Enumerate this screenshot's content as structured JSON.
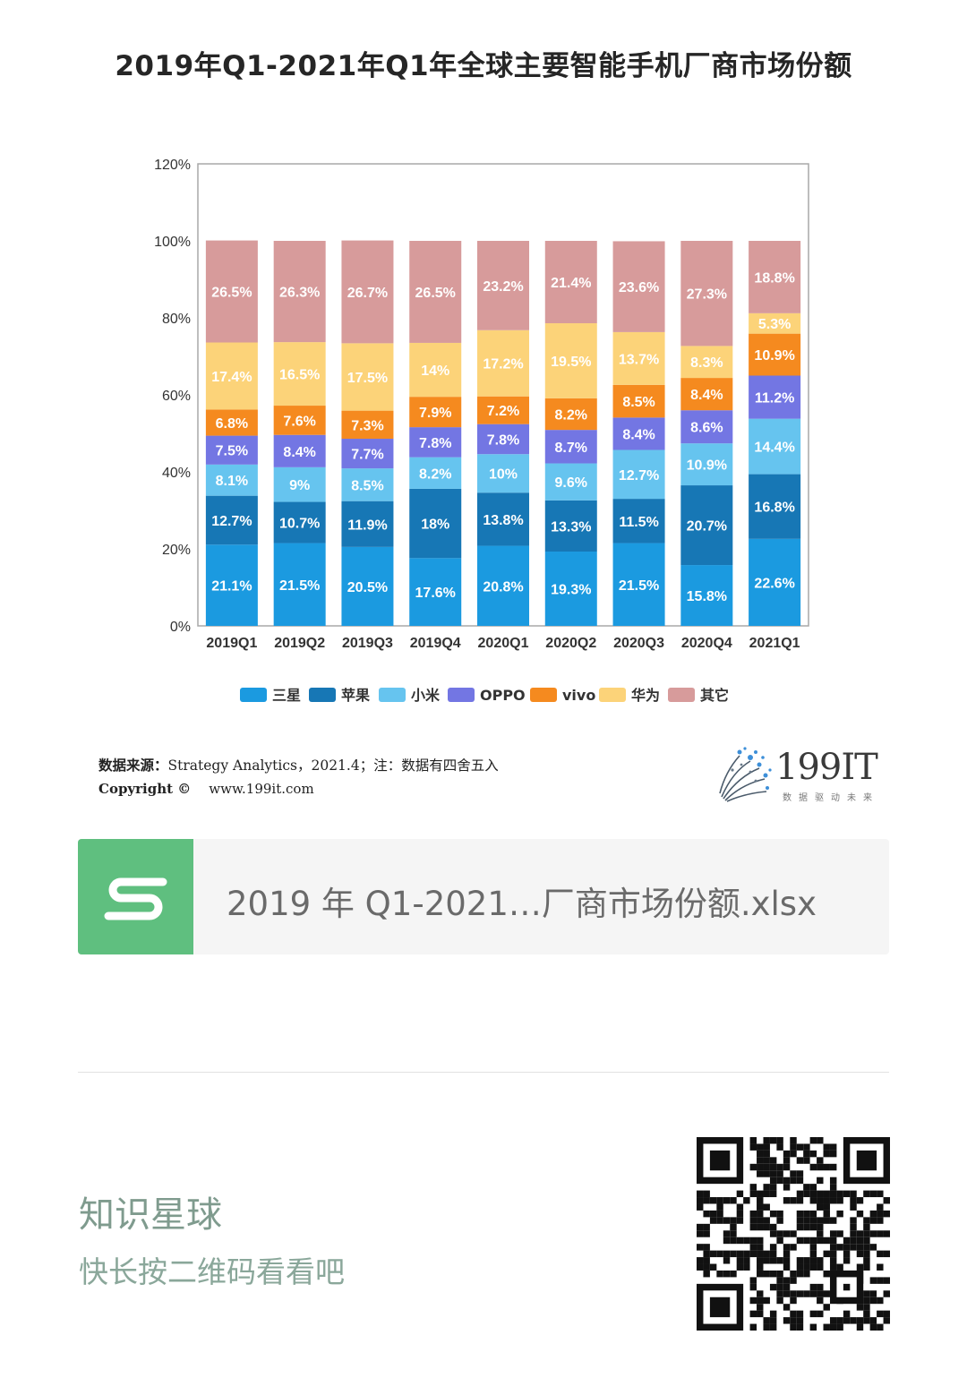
{
  "chart_data": {
    "type": "bar",
    "stacked": true,
    "title": "2019年Q1-2021年Q1年全球主要智能手机厂商市场份额",
    "xlabel": "",
    "ylabel": "",
    "ylim": [
      0,
      120
    ],
    "yticks": [
      "0%",
      "20%",
      "40%",
      "60%",
      "80%",
      "100%",
      "120%"
    ],
    "grid": false,
    "legend_position": "bottom",
    "categories": [
      "2019Q1",
      "2019Q2",
      "2019Q3",
      "2019Q4",
      "2020Q1",
      "2020Q2",
      "2020Q3",
      "2020Q4",
      "2021Q1"
    ],
    "series": [
      {
        "name": "三星",
        "color": "#1b9ae0",
        "values": [
          21.1,
          21.5,
          20.5,
          17.6,
          20.8,
          19.3,
          21.5,
          15.8,
          22.6
        ],
        "labels": [
          "21.1%",
          "21.5%",
          "20.5%",
          "17.6%",
          "20.8%",
          "19.3%",
          "21.5%",
          "15.8%",
          "22.6%"
        ]
      },
      {
        "name": "苹果",
        "color": "#1777b5",
        "values": [
          12.7,
          10.7,
          11.9,
          18,
          13.8,
          13.3,
          11.5,
          20.7,
          16.8
        ],
        "labels": [
          "12.7%",
          "10.7%",
          "11.9%",
          "18%",
          "13.8%",
          "13.3%",
          "11.5%",
          "20.7%",
          "16.8%"
        ]
      },
      {
        "name": "小米",
        "color": "#66c4ef",
        "values": [
          8.1,
          9,
          8.5,
          8.2,
          10,
          9.6,
          12.7,
          10.9,
          14.4
        ],
        "labels": [
          "8.1%",
          "9%",
          "8.5%",
          "8.2%",
          "10%",
          "9.6%",
          "12.7%",
          "10.9%",
          "14.4%"
        ]
      },
      {
        "name": "OPPO",
        "color": "#7376e3",
        "values": [
          7.5,
          8.4,
          7.7,
          7.8,
          7.8,
          8.7,
          8.4,
          8.6,
          11.2
        ],
        "labels": [
          "7.5%",
          "8.4%",
          "7.7%",
          "7.8%",
          "7.8%",
          "8.7%",
          "8.4%",
          "8.6%",
          "11.2%"
        ]
      },
      {
        "name": "vivo",
        "color": "#f58a1f",
        "values": [
          6.8,
          7.6,
          7.3,
          7.9,
          7.2,
          8.2,
          8.5,
          8.4,
          10.9
        ],
        "labels": [
          "6.8%",
          "7.6%",
          "7.3%",
          "7.9%",
          "7.2%",
          "8.2%",
          "8.5%",
          "8.4%",
          "10.9%"
        ]
      },
      {
        "name": "华为",
        "color": "#fcd379",
        "values": [
          17.4,
          16.5,
          17.5,
          14,
          17.2,
          19.5,
          13.7,
          8.3,
          5.3
        ],
        "labels": [
          "17.4%",
          "16.5%",
          "17.5%",
          "14%",
          "17.2%",
          "19.5%",
          "13.7%",
          "8.3%",
          "5.3%"
        ]
      },
      {
        "name": "其它",
        "color": "#d79b9b",
        "values": [
          26.5,
          26.3,
          26.7,
          26.5,
          23.2,
          21.4,
          23.6,
          27.3,
          18.8
        ],
        "labels": [
          "26.5%",
          "26.3%",
          "26.7%",
          "26.5%",
          "23.2%",
          "21.4%",
          "23.6%",
          "27.3%",
          "18.8%"
        ]
      }
    ]
  },
  "source": {
    "label": "数据来源：",
    "text": "Strategy Analytics，2021.4；注：数据有四舍五入"
  },
  "copyright": {
    "label": "Copyright ©",
    "url": "www.199it.com"
  },
  "logo": {
    "name": "199IT",
    "tagline": "数据驱动未来"
  },
  "attachment": {
    "icon": "spreadsheet-icon",
    "filename": "2019 年 Q1-2021…厂商市场份额.xlsx"
  },
  "promo": {
    "title": "知识星球",
    "subtitle": "快长按二维码看看吧"
  },
  "qr": {
    "icon": "qr-code-icon"
  }
}
